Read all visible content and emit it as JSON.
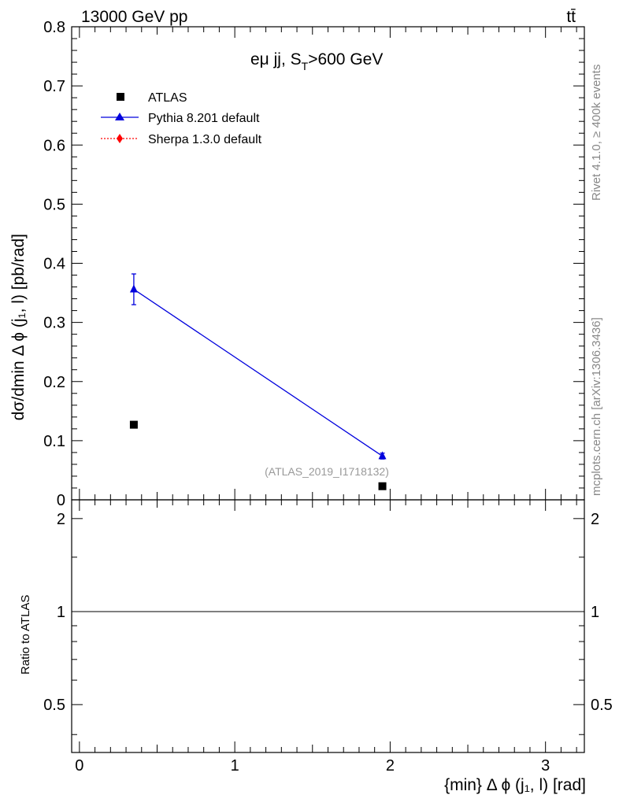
{
  "header": {
    "left": "13000 GeV pp",
    "right": "tt̄"
  },
  "side_text": {
    "top": "Rivet 4.1.0, ≥ 400k events",
    "bottom": "mcplots.cern.ch [arXiv:1306.3436]"
  },
  "chart_data": [
    {
      "type": "scatter",
      "panel": "main",
      "title_main": "eμ jj, S",
      "title_sub": "T",
      "title_rest": ">600 GeV",
      "ylabel": "dσ/dmin Δ ϕ (j₁, l) [pb/rad]",
      "xlim": [
        -0.05,
        3.25
      ],
      "ylim": [
        0,
        0.8
      ],
      "yticks": [
        0,
        0.1,
        0.2,
        0.3,
        0.4,
        0.5,
        0.6,
        0.7,
        0.8
      ],
      "ytick_labels": [
        "0",
        "0.1",
        "0.2",
        "0.3",
        "0.4",
        "0.5",
        "0.6",
        "0.7",
        "0.8"
      ],
      "reference": "(ATLAS_2019_I1718132)",
      "series": [
        {
          "name": "ATLAS",
          "marker": "square",
          "color": "#000000",
          "x": [
            0.35,
            1.95
          ],
          "y": [
            0.127,
            0.023
          ]
        },
        {
          "name": "Pythia 8.201 default",
          "marker": "triangle",
          "color": "#0000dd",
          "x": [
            0.35,
            1.95
          ],
          "y": [
            0.356,
            0.074
          ],
          "yerr": [
            0.026,
            0.005
          ]
        },
        {
          "name": "Sherpa 1.3.0 default",
          "marker": "diamond",
          "color": "#ff0000",
          "x": [],
          "y": []
        }
      ]
    },
    {
      "type": "line",
      "panel": "ratio",
      "ylabel": "Ratio to ATLAS",
      "xlabel": "{min} Δ ϕ (j₁, l) [rad]",
      "xlim": [
        -0.05,
        3.25
      ],
      "ylim": [
        0.35,
        2.3
      ],
      "log_y": true,
      "yticks": [
        0.5,
        1,
        2
      ],
      "ytick_labels": [
        "0.5",
        "1",
        "2"
      ],
      "xticks": [
        0,
        1,
        2,
        3
      ],
      "xtick_labels": [
        "0",
        "1",
        "2",
        "3"
      ],
      "reference_line": 1
    }
  ]
}
